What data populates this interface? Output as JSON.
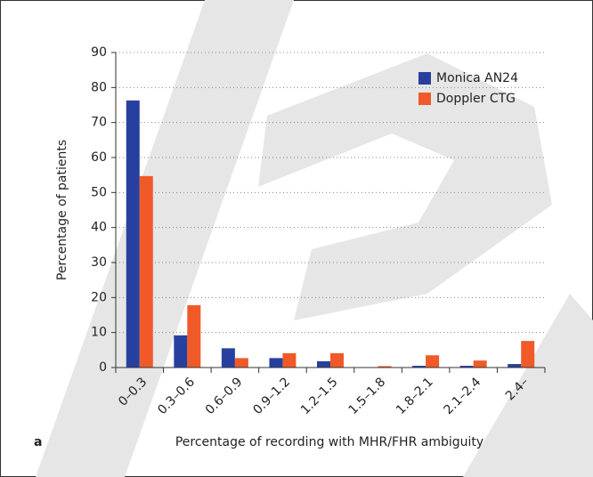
{
  "chart_data": {
    "type": "bar",
    "panel_label": "a",
    "x_label": "Percentage of recording with MHR/FHR ambiguity",
    "y_label": "Percentage of patients",
    "categories": [
      "0–0.3",
      "0.3–0.6",
      "0.6–0.9",
      "0.9–1.2",
      "1.2–1.5",
      "1.5–1.8",
      "1.8–2.1",
      "2.1–2.4",
      "2.4–"
    ],
    "series": [
      {
        "name": "Monica AN24",
        "color": "#2740a0",
        "values": [
          76.3,
          9.2,
          5.5,
          2.7,
          1.8,
          0,
          0.5,
          0.5,
          1
        ]
      },
      {
        "name": "Doppler CTG",
        "color": "#f05a28",
        "values": [
          54.7,
          17.8,
          2.7,
          4.1,
          4.1,
          0.4,
          3.5,
          2,
          7.6
        ]
      }
    ],
    "ylim": [
      0,
      90
    ],
    "yticks": [
      0,
      10,
      20,
      30,
      40,
      50,
      60,
      70,
      80,
      90
    ],
    "grid": true,
    "legend": "upper right"
  }
}
